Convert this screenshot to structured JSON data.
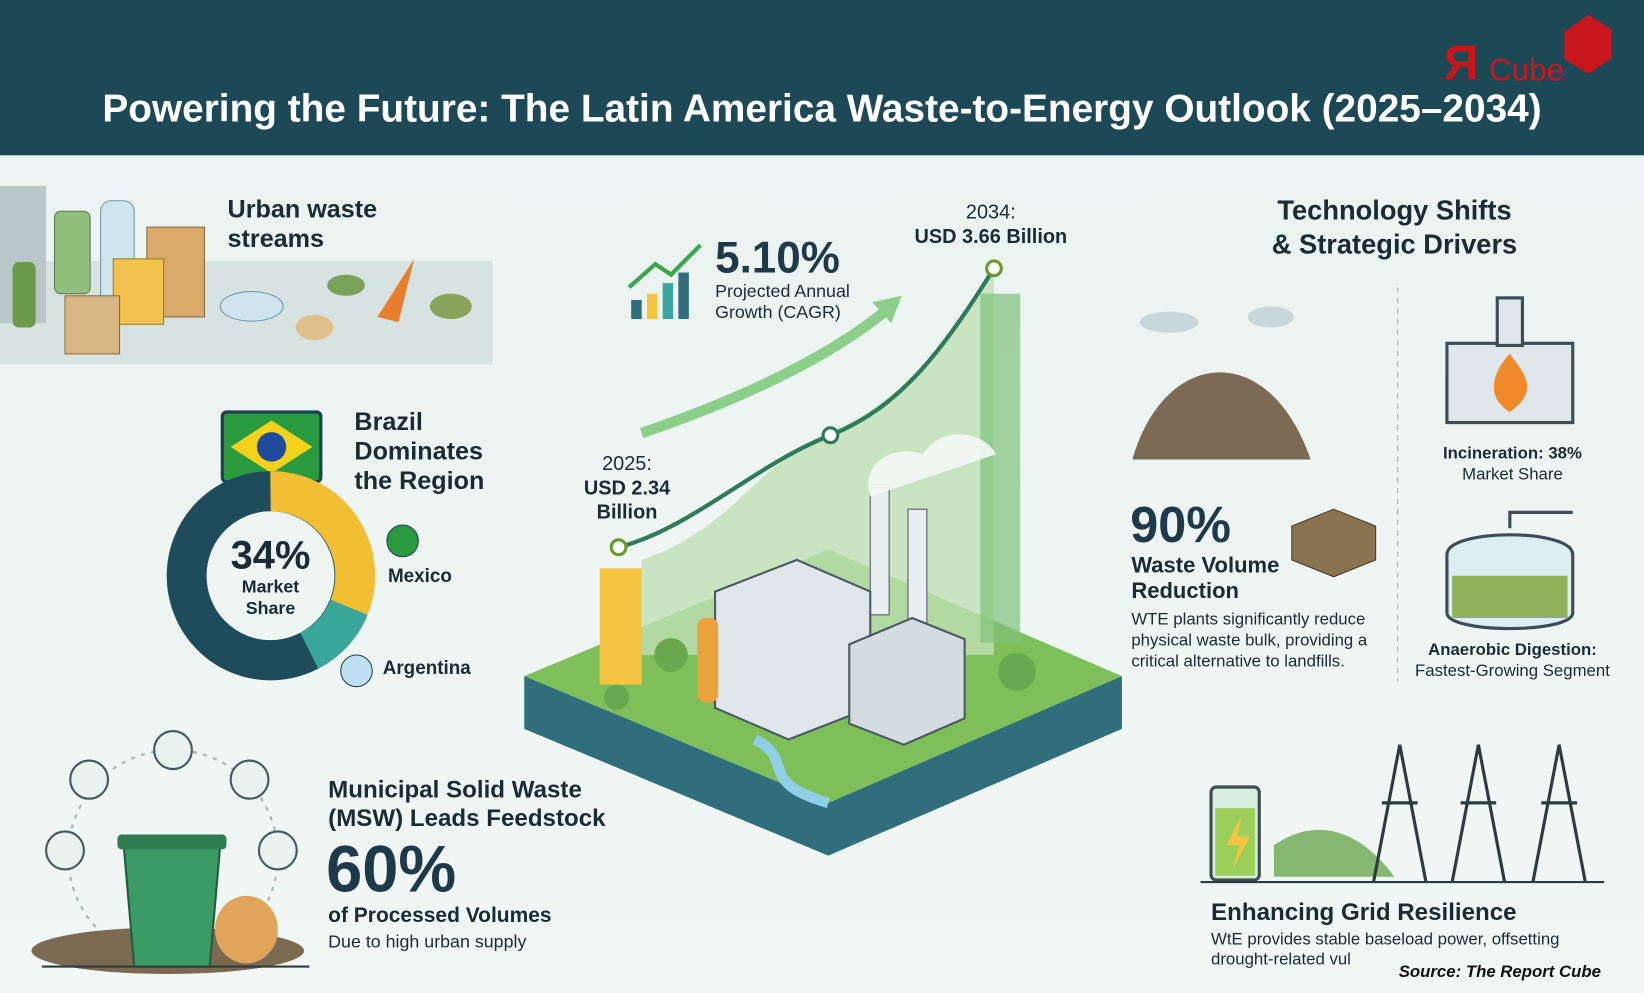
{
  "header": {
    "title": "Powering the Future: The Latin America Waste-to-Energy Outlook (2025–2034)",
    "logo_mark": "Я",
    "logo_text": "Cube"
  },
  "urban_waste": {
    "title_lines": [
      "Urban waste",
      "streams"
    ]
  },
  "brazil": {
    "title_lines": [
      "Brazil",
      "Dominates",
      "the Region"
    ],
    "share": "34%",
    "share_label_lines": [
      "Market",
      "Share"
    ],
    "others": [
      "Mexico",
      "Argentina"
    ]
  },
  "msw": {
    "title_lines": [
      "Municipal Solid Waste",
      "(MSW) Leads Feedstock"
    ],
    "share": "60%",
    "subtitle": "of Processed Volumes",
    "note": "Due to high urban supply"
  },
  "growth": {
    "cagr": "5.10%",
    "cagr_label_lines": [
      "Projected Annual",
      "Growth (CAGR)"
    ],
    "start_lines": [
      "2025:",
      "USD 2.34",
      "Billion"
    ],
    "end_lines": [
      "2034:",
      "USD 3.66 Billion"
    ]
  },
  "drivers": {
    "title_lines": [
      "Technology Shifts",
      "& Strategic Drivers"
    ],
    "reduction": {
      "value": "90%",
      "title_lines": [
        "Waste Volume",
        "Reduction"
      ],
      "text_lines": [
        "WTE plants significantly reduce",
        "physical waste bulk, providing a",
        "critical alternative to landfills."
      ]
    },
    "incineration": {
      "title": "Incineration: 38%",
      "subtitle": "Market Share"
    },
    "digestion": {
      "title": "Anaerobic Digestion:",
      "subtitle": "Fastest-Growing Segment"
    },
    "grid": {
      "title": "Enhancing Grid Resilience",
      "text_lines": [
        "WtE provides stable baseload power, offsetting",
        "drought-related vul"
      ]
    }
  },
  "footer": {
    "source": "Source: The Report Cube"
  }
}
